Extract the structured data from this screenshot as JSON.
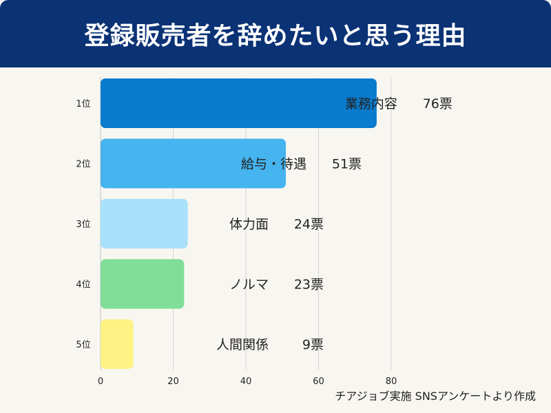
{
  "title": "登録販売者を辞めたいと思う理由",
  "source": "チアジョブ実施 SNSアンケートより作成",
  "chart_data": {
    "type": "bar",
    "orientation": "horizontal",
    "categories": [
      "1位",
      "2位",
      "3位",
      "4位",
      "5位"
    ],
    "values": [
      76,
      51,
      24,
      23,
      9
    ],
    "value_labels": [
      "76票",
      "51票",
      "24票",
      "23票",
      "9票"
    ],
    "bar_labels": [
      "業務内容",
      "給与・待遇",
      "体力面",
      "ノルマ",
      "人間関係"
    ],
    "colors": [
      "#0a7bcd",
      "#45b4ef",
      "#a9e1fb",
      "#80de98",
      "#fdf283"
    ],
    "xticks": [
      0,
      20,
      40,
      60,
      80
    ],
    "xlim": [
      0,
      80
    ],
    "grid": true
  }
}
